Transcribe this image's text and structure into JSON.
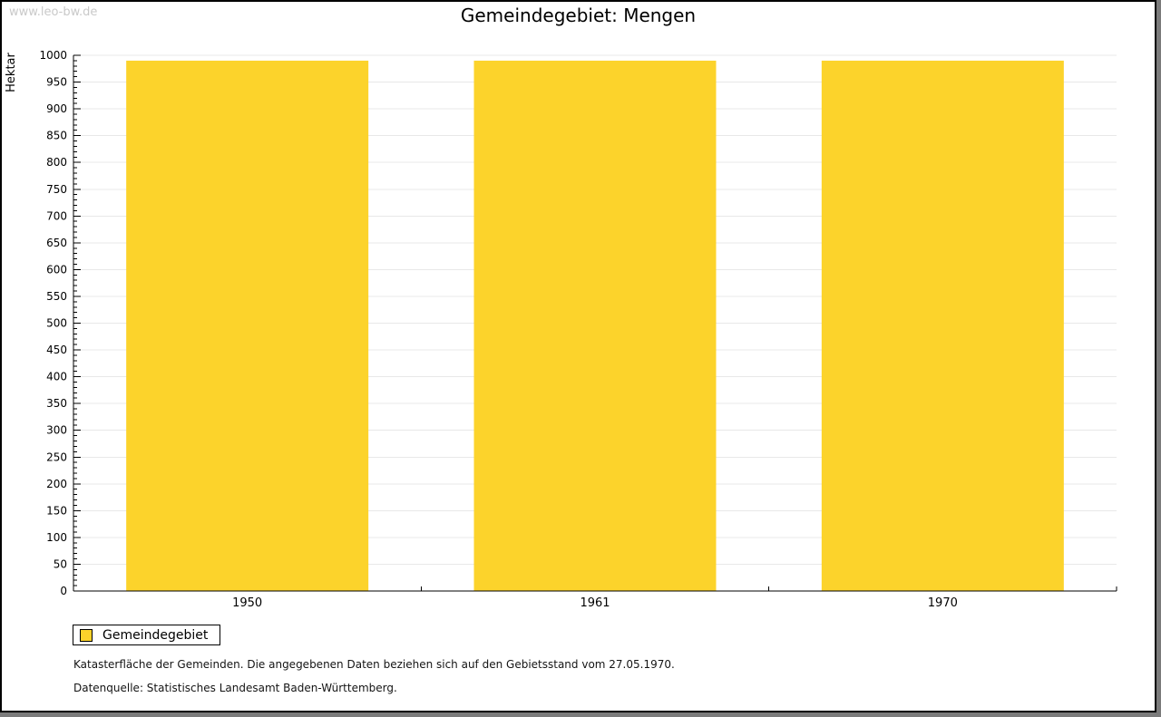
{
  "page": {
    "watermark": "www.leo-bw.de"
  },
  "chart_data": {
    "type": "bar",
    "title": "Gemeindegebiet: Mengen",
    "ylabel": "Hektar",
    "categories": [
      "1950",
      "1961",
      "1970"
    ],
    "values": [
      990,
      990,
      990
    ],
    "ylim": [
      0,
      1000
    ],
    "ytick_major": 50,
    "ytick_minor": 10,
    "grid": "horizontal-major",
    "bar_color": "#FCD32B",
    "gridline_color": "#e8e8e8",
    "legend": {
      "label": "Gemeindegebiet",
      "position": "bottom-left"
    }
  },
  "notes": {
    "line1": "Katasterfläche der Gemeinden. Die angegebenen Daten beziehen sich auf den Gebietsstand vom 27.05.1970.",
    "line2": "Datenquelle: Statistisches Landesamt Baden-Württemberg."
  }
}
